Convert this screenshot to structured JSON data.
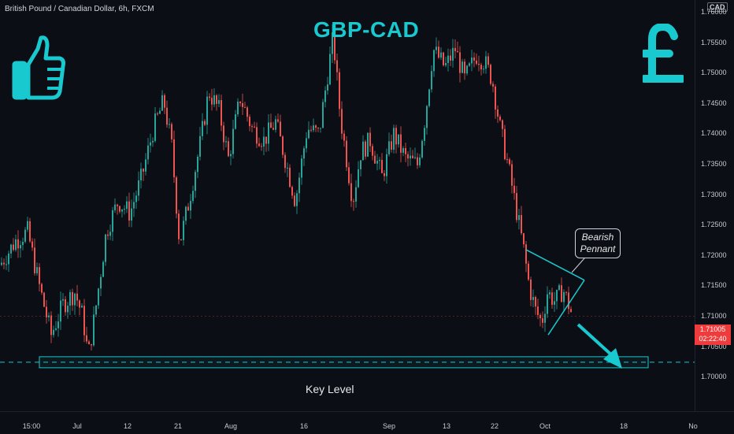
{
  "symbol_label": "British Pound / Canadian Dollar, 6h, FXCM",
  "title": "GBP-CAD",
  "currency_badge": "CAD",
  "annotations": {
    "pennant_label_line1": "Bearish",
    "pennant_label_line2": "Pennant",
    "key_level_label": "Key Level"
  },
  "price_tag": {
    "price": "1.71005",
    "countdown": "02:22:40"
  },
  "colors": {
    "up": "#26a69a",
    "down": "#ef5350",
    "accent": "#18c9cf",
    "background": "#0c0e15"
  },
  "icons": [
    "thumbs-up-icon",
    "pound-sign-icon"
  ],
  "chart_data": {
    "type": "candlestick",
    "title": "",
    "y_ticks": [
      "1.76000",
      "1.75500",
      "1.75000",
      "1.74500",
      "1.74000",
      "1.73500",
      "1.73000",
      "1.72500",
      "1.72000",
      "1.71500",
      "1.71000",
      "1.70500",
      "1.70000"
    ],
    "x_ticks": [
      "15:00",
      "Jul",
      "12",
      "21",
      "Aug",
      "16",
      "Sep",
      "13",
      "22",
      "Oct",
      "18",
      "No"
    ],
    "ylim": [
      1.6975,
      1.765
    ],
    "key_level": 1.7025,
    "current_price": 1.71005,
    "close_path": [
      [
        0,
        1.7185
      ],
      [
        20,
        1.7225
      ],
      [
        35,
        1.724
      ],
      [
        50,
        1.715
      ],
      [
        65,
        1.707
      ],
      [
        80,
        1.712
      ],
      [
        95,
        1.714
      ],
      [
        105,
        1.71
      ],
      [
        112,
        1.7035
      ],
      [
        120,
        1.71
      ],
      [
        135,
        1.724
      ],
      [
        150,
        1.729
      ],
      [
        165,
        1.727
      ],
      [
        180,
        1.733
      ],
      [
        195,
        1.741
      ],
      [
        208,
        1.7455
      ],
      [
        218,
        1.738
      ],
      [
        228,
        1.722
      ],
      [
        240,
        1.729
      ],
      [
        255,
        1.739
      ],
      [
        265,
        1.747
      ],
      [
        278,
        1.744
      ],
      [
        290,
        1.736
      ],
      [
        305,
        1.746
      ],
      [
        320,
        1.741
      ],
      [
        335,
        1.739
      ],
      [
        350,
        1.742
      ],
      [
        362,
        1.736
      ],
      [
        375,
        1.729
      ],
      [
        390,
        1.741
      ],
      [
        405,
        1.74
      ],
      [
        415,
        1.749
      ],
      [
        423,
        1.756
      ],
      [
        432,
        1.743
      ],
      [
        440,
        1.736
      ],
      [
        448,
        1.729
      ],
      [
        458,
        1.737
      ],
      [
        470,
        1.739
      ],
      [
        485,
        1.733
      ],
      [
        500,
        1.74
      ],
      [
        515,
        1.736
      ],
      [
        530,
        1.735
      ],
      [
        540,
        1.743
      ],
      [
        550,
        1.754
      ],
      [
        565,
        1.751
      ],
      [
        578,
        1.754
      ],
      [
        590,
        1.749
      ],
      [
        605,
        1.753
      ],
      [
        615,
        1.752
      ],
      [
        625,
        1.749
      ],
      [
        635,
        1.741
      ],
      [
        645,
        1.735
      ],
      [
        655,
        1.728
      ],
      [
        665,
        1.721
      ],
      [
        672,
        1.715
      ],
      [
        680,
        1.711
      ],
      [
        688,
        1.709
      ],
      [
        695,
        1.714
      ],
      [
        705,
        1.7125
      ],
      [
        715,
        1.7145
      ],
      [
        722,
        1.712
      ],
      [
        727,
        1.71
      ]
    ]
  }
}
